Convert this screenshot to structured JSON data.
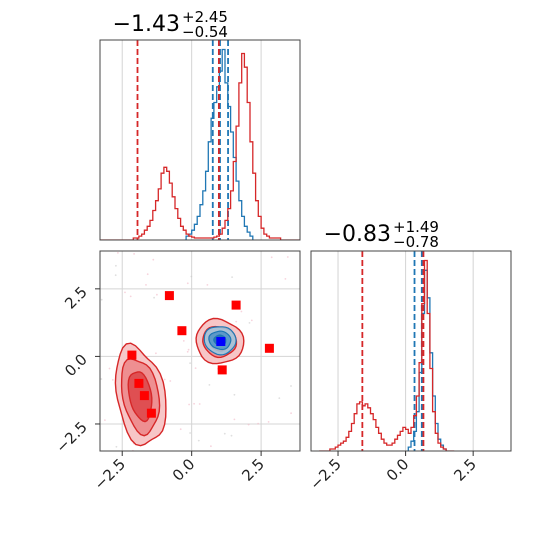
{
  "chart_data": [
    {
      "panel": "marginal-x",
      "type": "histogram",
      "title": {
        "base": "−1.43",
        "sup": "+2.45",
        "sub": "−0.54"
      },
      "xlim": [
        -3.3,
        3.9
      ],
      "grid": true,
      "series": [
        {
          "color": "#1f77b4",
          "bin_start": -0.2,
          "bin_width": 0.1,
          "counts": [
            0.02,
            0.03,
            0.05,
            0.08,
            0.12,
            0.18,
            0.25,
            0.35,
            0.5,
            0.62,
            0.7,
            0.78,
            0.86,
            0.97,
            0.8,
            0.68,
            0.55,
            0.42,
            0.3,
            0.2,
            0.12,
            0.07,
            0.04,
            0.02
          ],
          "quantile_lines": [
            0.76,
            1.02,
            1.31
          ]
        },
        {
          "color": "#d62728",
          "bin_start": -3.3,
          "bin_width": 0.1,
          "counts": [
            0,
            0,
            0,
            0,
            0,
            0,
            0,
            0,
            0,
            0,
            0,
            0,
            0.01,
            0.01,
            0.02,
            0.03,
            0.05,
            0.07,
            0.1,
            0.15,
            0.2,
            0.26,
            0.34,
            0.37,
            0.35,
            0.29,
            0.22,
            0.16,
            0.11,
            0.07,
            0.05,
            0.03,
            0.02,
            0.015,
            0.01,
            0.01,
            0.01,
            0.01,
            0.01,
            0.01,
            0.01,
            0.015,
            0.02,
            0.03,
            0.06,
            0.1,
            0.16,
            0.25,
            0.4,
            0.58,
            0.8,
            0.95,
            0.88,
            0.7,
            0.5,
            0.34,
            0.2,
            0.12,
            0.06,
            0.03,
            0.02,
            0.01,
            0.01,
            0.01,
            0.01,
            0,
            0,
            0,
            0,
            0,
            0,
            0
          ],
          "quantile_lines": [
            -1.95,
            0.98
          ]
        }
      ]
    },
    {
      "panel": "joint",
      "type": "contour",
      "xlim": [
        -3.3,
        3.9
      ],
      "ylim": [
        -3.5,
        3.9
      ],
      "grid": true,
      "blue_mode": {
        "center": [
          1.02,
          0.6
        ],
        "color": "#1f77b4"
      },
      "red_modes": [
        {
          "center": [
            1.0,
            0.55
          ],
          "color": "#d62728"
        },
        {
          "center": [
            -1.85,
            -1.45
          ],
          "color": "#d62728"
        }
      ],
      "red_markers": [
        [
          -2.15,
          0.05
        ],
        [
          -1.9,
          -1.0
        ],
        [
          -1.7,
          -1.45
        ],
        [
          -1.45,
          -2.1
        ],
        [
          -0.8,
          2.25
        ],
        [
          -0.35,
          0.95
        ],
        [
          1.6,
          1.9
        ],
        [
          2.8,
          0.3
        ],
        [
          1.1,
          -0.5
        ]
      ],
      "blue_markers": [
        [
          1.05,
          0.55
        ]
      ]
    },
    {
      "panel": "marginal-y",
      "type": "histogram",
      "title": {
        "base": "−0.83",
        "sup": "+1.49",
        "sub": "−0.78"
      },
      "xlim": [
        -3.5,
        3.9
      ],
      "grid": true,
      "series": [
        {
          "color": "#1f77b4",
          "bin_start": 0.1,
          "bin_width": 0.1,
          "counts": [
            0.02,
            0.05,
            0.1,
            0.2,
            0.4,
            0.7,
            0.92,
            0.78,
            0.5,
            0.28,
            0.14,
            0.06,
            0.03,
            0.01
          ],
          "quantile_lines": [
            0.33,
            0.6
          ]
        },
        {
          "color": "#d62728",
          "bin_start": -3.2,
          "bin_width": 0.1,
          "counts": [
            0,
            0,
            0,
            0,
            0.01,
            0.01,
            0.02,
            0.03,
            0.04,
            0.05,
            0.07,
            0.1,
            0.14,
            0.19,
            0.24,
            0.25,
            0.23,
            0.24,
            0.22,
            0.19,
            0.16,
            0.12,
            0.09,
            0.06,
            0.04,
            0.03,
            0.03,
            0.04,
            0.06,
            0.08,
            0.1,
            0.12,
            0.11,
            0.09,
            0.12,
            0.18,
            0.28,
            0.45,
            0.75,
            0.97,
            0.7,
            0.42,
            0.2,
            0.09,
            0.04,
            0.02,
            0.01,
            0,
            0,
            0
          ],
          "quantile_lines": [
            -1.6,
            0.66
          ]
        }
      ]
    }
  ],
  "axes": {
    "bottom_ticks": [
      "−2.5",
      "0.0",
      "2.5"
    ],
    "bottom_tick_values": [
      -2.5,
      0.0,
      2.5
    ],
    "left_ticks": [
      "2.5",
      "0.0",
      "−2.5"
    ],
    "left_tick_values": [
      2.5,
      0.0,
      -2.5
    ]
  }
}
